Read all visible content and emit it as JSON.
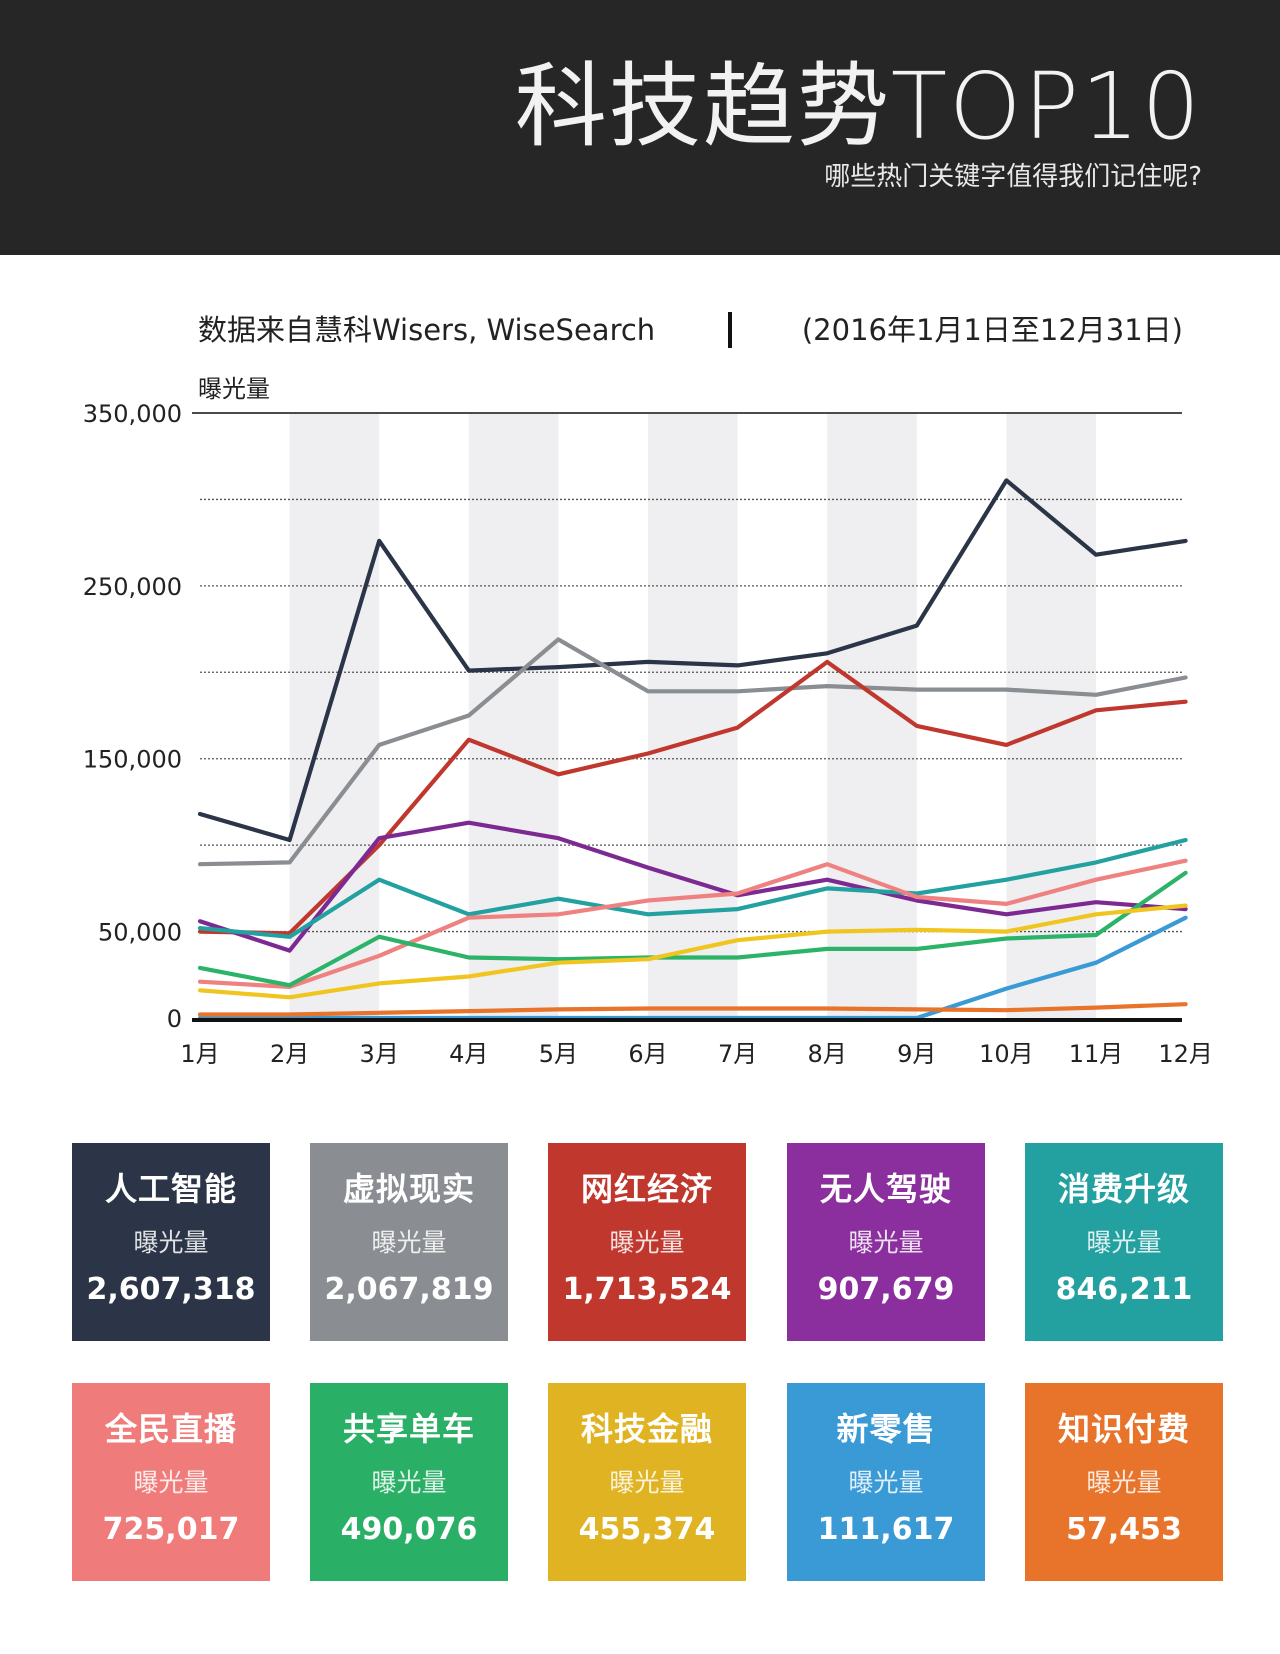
{
  "header": {
    "title": "科技趋势TOP10",
    "subtitle": "哪些热门关键字值得我们记住呢?"
  },
  "source": {
    "text": "数据来自慧科Wisers, WiseSearch",
    "range": "(2016年1月1日至12月31日)"
  },
  "chart_data": {
    "type": "line",
    "ylabel": "曝光量",
    "xlabel": "",
    "ylim": [
      0,
      350000
    ],
    "yticks": [
      0,
      50000,
      150000,
      250000,
      350000
    ],
    "ytick_labels": [
      "0",
      "50,000",
      "150,000",
      "250,000",
      "350,000"
    ],
    "gridlines": [
      50000,
      100000,
      150000,
      200000,
      250000,
      300000
    ],
    "categories": [
      "1月",
      "2月",
      "3月",
      "4月",
      "5月",
      "6月",
      "7月",
      "8月",
      "9月",
      "10月",
      "11月",
      "12月"
    ],
    "series": [
      {
        "name": "人工智能",
        "color": "#2b3547",
        "values": [
          118000,
          103000,
          276000,
          201000,
          203000,
          206000,
          204000,
          211000,
          227000,
          311000,
          268000,
          276000
        ]
      },
      {
        "name": "虚拟现实",
        "color": "#8a8d91",
        "values": [
          89000,
          90000,
          158000,
          175000,
          219000,
          189000,
          189000,
          192000,
          190000,
          190000,
          187000,
          197000
        ]
      },
      {
        "name": "网红经济",
        "color": "#c0382d",
        "values": [
          50000,
          49000,
          100000,
          161000,
          141000,
          153000,
          168000,
          206000,
          169000,
          158000,
          178000,
          183000
        ]
      },
      {
        "name": "无人驾驶",
        "color": "#7c2a92",
        "values": [
          56000,
          39000,
          104000,
          113000,
          104000,
          87000,
          71000,
          80000,
          68000,
          60000,
          67000,
          63000
        ]
      },
      {
        "name": "消费升级",
        "color": "#23a0a0",
        "values": [
          52000,
          47000,
          80000,
          60000,
          69000,
          60000,
          63000,
          75000,
          72000,
          80000,
          90000,
          103000
        ]
      },
      {
        "name": "全民直播",
        "color": "#ef8180",
        "values": [
          21000,
          18000,
          36000,
          58000,
          60000,
          68000,
          72000,
          89000,
          70000,
          66000,
          80000,
          91000
        ]
      },
      {
        "name": "共享单车",
        "color": "#2bb368",
        "values": [
          29000,
          19000,
          47000,
          35000,
          34000,
          35000,
          35000,
          40000,
          40000,
          46000,
          48000,
          84000
        ]
      },
      {
        "name": "科技金融",
        "color": "#f0c51f",
        "values": [
          16000,
          12000,
          20000,
          24000,
          32000,
          34000,
          45000,
          50000,
          51000,
          50000,
          60000,
          65000
        ]
      },
      {
        "name": "新零售",
        "color": "#3a9ad6",
        "values": [
          0,
          0,
          0,
          0,
          0,
          0,
          0,
          0,
          0,
          17000,
          32000,
          58000
        ]
      },
      {
        "name": "知识付费",
        "color": "#e8732a",
        "values": [
          2000,
          2000,
          3000,
          4000,
          5000,
          5500,
          5500,
          5500,
          5000,
          4500,
          6000,
          8000
        ]
      }
    ]
  },
  "cards": [
    {
      "name": "人工智能",
      "metric": "曝光量",
      "value": "2,607,318",
      "color": "#2b3547"
    },
    {
      "name": "虚拟现实",
      "metric": "曝光量",
      "value": "2,067,819",
      "color": "#8a8d91"
    },
    {
      "name": "网红经济",
      "metric": "曝光量",
      "value": "1,713,524",
      "color": "#c0382d"
    },
    {
      "name": "无人驾驶",
      "metric": "曝光量",
      "value": "907,679",
      "color": "#8b2f9e"
    },
    {
      "name": "消费升级",
      "metric": "曝光量",
      "value": "846,211",
      "color": "#23a0a0"
    },
    {
      "name": "全民直播",
      "metric": "曝光量",
      "value": "725,017",
      "color": "#ef7c7a"
    },
    {
      "name": "共享单车",
      "metric": "曝光量",
      "value": "490,076",
      "color": "#2aaf66"
    },
    {
      "name": "科技金融",
      "metric": "曝光量",
      "value": "455,374",
      "color": "#e0b322"
    },
    {
      "name": "新零售",
      "metric": "曝光量",
      "value": "111,617",
      "color": "#3a9ad6"
    },
    {
      "name": "知识付费",
      "metric": "曝光量",
      "value": "57,453",
      "color": "#e8732a"
    }
  ]
}
